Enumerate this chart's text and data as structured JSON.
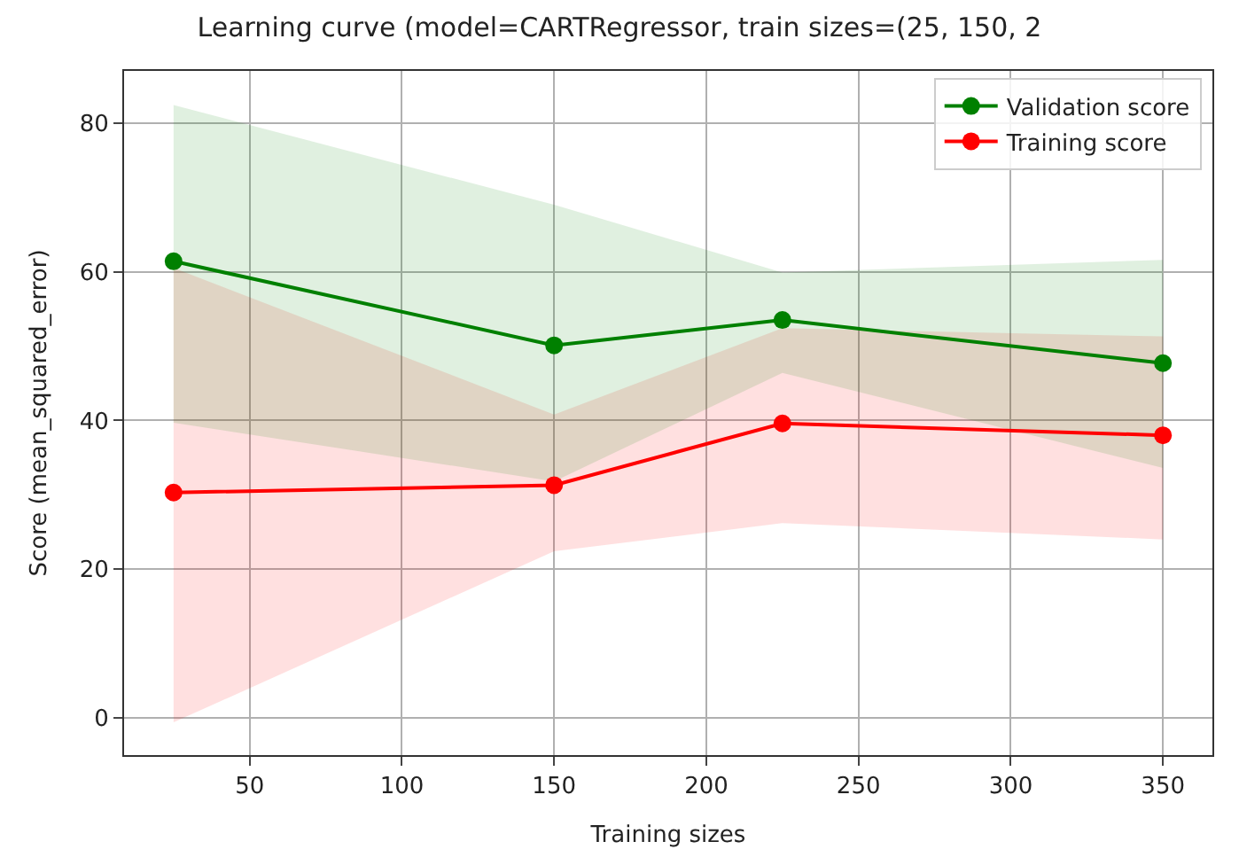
{
  "chart_data": {
    "type": "line",
    "title": "Learning curve (model=CARTRegressor, train sizes=(25, 150, 2",
    "xlabel": "Training sizes",
    "ylabel": "Score (mean_squared_error)",
    "x": [
      25,
      150,
      225,
      350
    ],
    "series": [
      {
        "name": "Training score",
        "color": "#ff0000",
        "values": [
          30.3,
          31.3,
          39.6,
          38.0
        ],
        "lower": [
          -0.6,
          22.4,
          26.2,
          24.0
        ],
        "upper": [
          60.5,
          40.8,
          52.4,
          51.3
        ]
      },
      {
        "name": "Validation score",
        "color": "#008000",
        "values": [
          61.4,
          50.1,
          53.5,
          47.7
        ],
        "lower": [
          39.7,
          31.8,
          46.4,
          33.6
        ],
        "upper": [
          82.4,
          69.0,
          59.9,
          61.6
        ]
      }
    ],
    "xlim": [
      8.75,
      366.25
    ],
    "xticks": [
      50,
      100,
      150,
      200,
      250,
      300,
      350
    ],
    "ylim": [
      -5,
      87
    ],
    "yticks": [
      0,
      20,
      40,
      60,
      80
    ],
    "grid": true,
    "legend": "top right",
    "marker": "circle",
    "line_style": "solid"
  }
}
